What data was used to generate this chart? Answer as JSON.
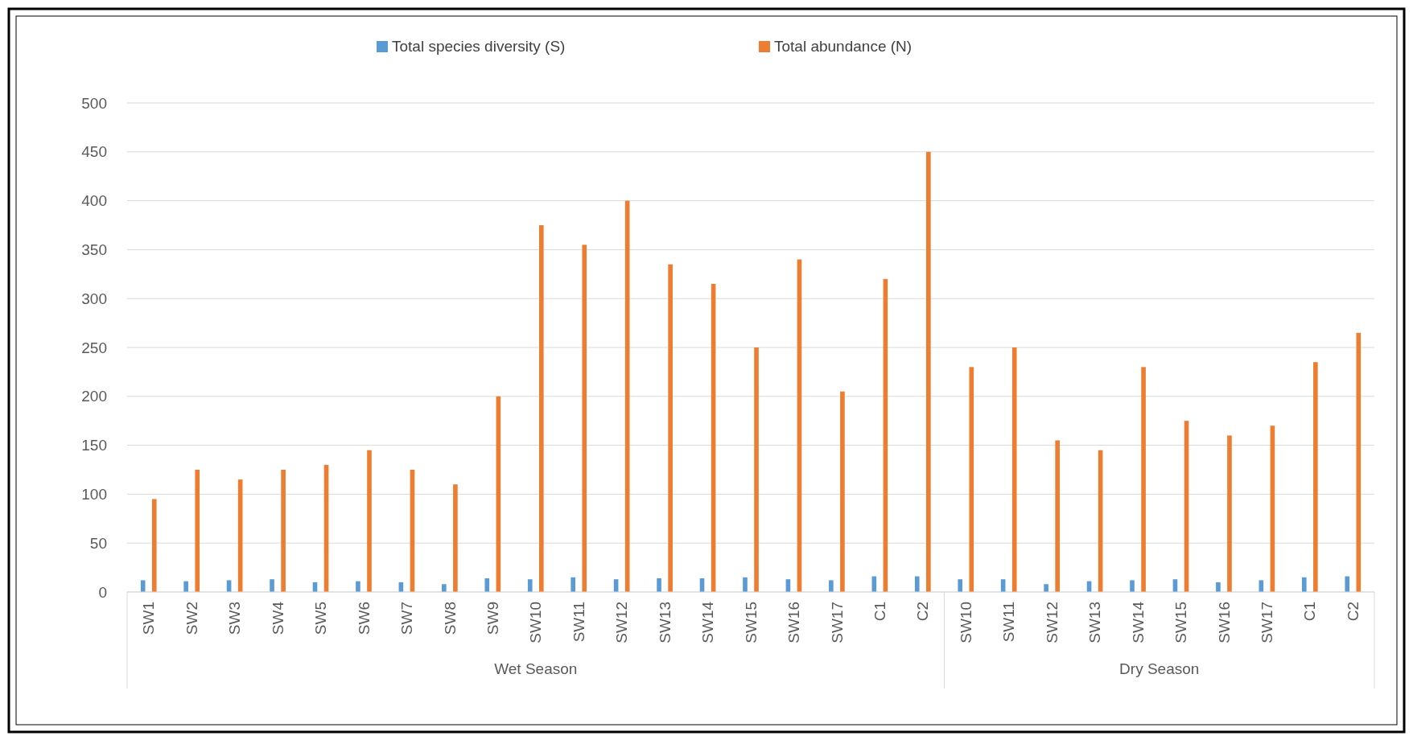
{
  "chart_data": {
    "type": "bar",
    "categories": [
      "SW1",
      "SW2",
      "SW3",
      "SW4",
      "SW5",
      "SW6",
      "SW7",
      "SW8",
      "SW9",
      "SW10",
      "SW11",
      "SW12",
      "SW13",
      "SW14",
      "SW15",
      "SW16",
      "SW17",
      "C1",
      "C2",
      "SW10",
      "SW11",
      "SW12",
      "SW13",
      "SW14",
      "SW15",
      "SW16",
      "SW17",
      "C1",
      "C2"
    ],
    "series": [
      {
        "name": "Total species diversity (S)",
        "color": "#5b9bd5",
        "values": [
          12,
          11,
          12,
          13,
          10,
          11,
          10,
          8,
          14,
          13,
          15,
          13,
          14,
          14,
          15,
          13,
          12,
          16,
          16,
          13,
          13,
          8,
          11,
          12,
          13,
          10,
          12,
          15,
          16
        ]
      },
      {
        "name": "Total abundance (N)",
        "color": "#ed7d31",
        "values": [
          95,
          125,
          115,
          125,
          130,
          145,
          125,
          110,
          200,
          375,
          355,
          400,
          335,
          315,
          250,
          340,
          205,
          320,
          450,
          230,
          250,
          155,
          145,
          230,
          175,
          160,
          170,
          235,
          265
        ]
      }
    ],
    "ylim": [
      0,
      500
    ],
    "yticks": [
      0,
      50,
      100,
      150,
      200,
      250,
      300,
      350,
      400,
      450,
      500
    ],
    "grid": "y",
    "legend": "top",
    "annotations": [
      "Wet Season",
      "Dry Season"
    ]
  }
}
